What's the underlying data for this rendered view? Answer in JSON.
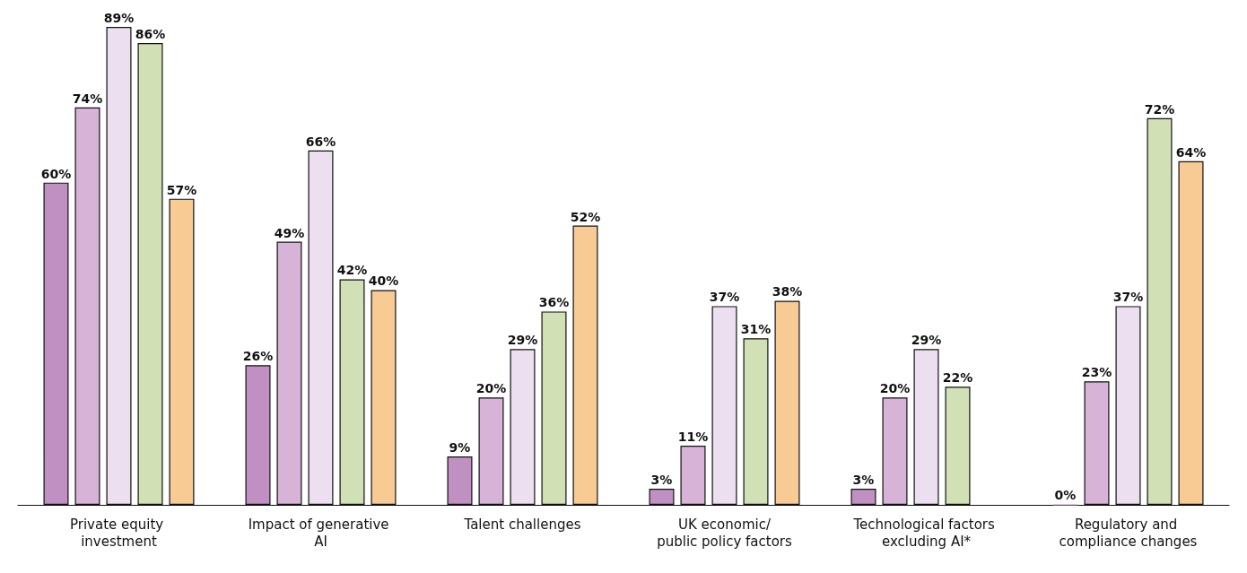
{
  "chart_data": {
    "type": "bar",
    "categories": [
      "Private equity investment",
      "Impact of generative AI",
      "Talent challenges",
      "UK economic/\npublic policy factors",
      "Technological factors excluding AI*",
      "Regulatory and compliance changes"
    ],
    "series": [
      {
        "color": "#c190c3",
        "values": [
          60,
          26,
          9,
          3,
          3,
          0
        ],
        "value_labels": [
          "60%",
          "26%",
          "9%",
          "3%",
          "3%",
          "0%"
        ]
      },
      {
        "color": "#d7b3d8",
        "values": [
          74,
          49,
          20,
          11,
          20,
          23
        ],
        "value_labels": [
          "74%",
          "49%",
          "20%",
          "11%",
          "20%",
          "23%"
        ]
      },
      {
        "color": "#ecdfef",
        "values": [
          89,
          66,
          29,
          37,
          29,
          37
        ],
        "value_labels": [
          "89%",
          "66%",
          "29%",
          "37%",
          "29%",
          "37%"
        ]
      },
      {
        "color": "#d2e1b5",
        "values": [
          86,
          42,
          36,
          31,
          22,
          72
        ],
        "value_labels": [
          "86%",
          "42%",
          "36%",
          "31%",
          "22%",
          "72%"
        ]
      },
      {
        "color": "#f8cb95",
        "values": [
          57,
          40,
          52,
          38,
          null,
          64
        ],
        "value_labels": [
          "57%",
          "40%",
          "52%",
          "38%",
          null,
          "64%"
        ]
      }
    ],
    "grid": false
  }
}
